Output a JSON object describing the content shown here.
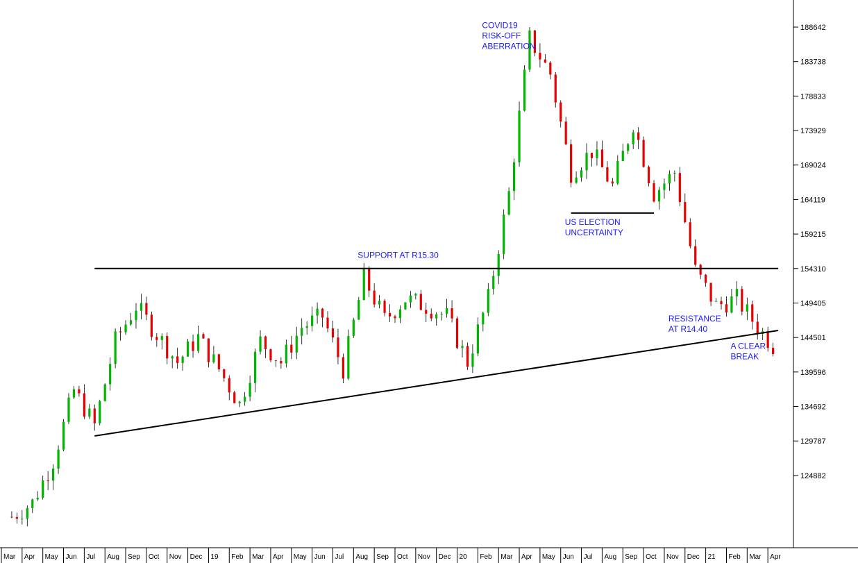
{
  "colors": {
    "up": "#00b400",
    "down": "#e60000",
    "wick": "#000000",
    "annotation": "#1a1aff",
    "axis": "#000000"
  },
  "chart_data": {
    "type": "candlestick",
    "title": "",
    "xlabel": "",
    "ylabel": "",
    "ylim": [
      115000,
      192000
    ],
    "y_ticks": [
      "188642",
      "183738",
      "178833",
      "173929",
      "169024",
      "164119",
      "159215",
      "154310",
      "149405",
      "144501",
      "139596",
      "134692",
      "129787",
      "124882"
    ],
    "x_ticks": [
      "Mar",
      "Apr",
      "May",
      "Jun",
      "Jul",
      "Aug",
      "Sep",
      "Oct",
      "Nov",
      "Dec",
      "19",
      "Feb",
      "Mar",
      "Apr",
      "May",
      "Jun",
      "Jul",
      "Aug",
      "Sep",
      "Oct",
      "Nov",
      "Dec",
      "20",
      "Feb",
      "Mar",
      "Apr",
      "May",
      "Jun",
      "Jul",
      "Aug",
      "Sep",
      "Oct",
      "Nov",
      "Dec",
      "21",
      "Feb",
      "Mar",
      "Apr"
    ],
    "x_start": "2018-03",
    "x_end": "2021-04",
    "approx_path": [
      {
        "t": "2018-03",
        "v": 119000
      },
      {
        "t": "2018-04",
        "v": 121000
      },
      {
        "t": "2018-05",
        "v": 127000
      },
      {
        "t": "2018-06",
        "v": 137000
      },
      {
        "t": "2018-07",
        "v": 132000
      },
      {
        "t": "2018-08",
        "v": 144000
      },
      {
        "t": "2018-09",
        "v": 149000
      },
      {
        "t": "2018-10",
        "v": 145000
      },
      {
        "t": "2018-11",
        "v": 141000
      },
      {
        "t": "2018-12",
        "v": 144500
      },
      {
        "t": "2019-01",
        "v": 140000
      },
      {
        "t": "2019-02",
        "v": 135000
      },
      {
        "t": "2019-03",
        "v": 144000
      },
      {
        "t": "2019-04",
        "v": 141000
      },
      {
        "t": "2019-05",
        "v": 146000
      },
      {
        "t": "2019-06",
        "v": 147500
      },
      {
        "t": "2019-07",
        "v": 140000
      },
      {
        "t": "2019-08",
        "v": 153000
      },
      {
        "t": "2019-09",
        "v": 147000
      },
      {
        "t": "2019-10",
        "v": 150000
      },
      {
        "t": "2019-11",
        "v": 149000
      },
      {
        "t": "2019-12",
        "v": 147500
      },
      {
        "t": "2020-01",
        "v": 141000
      },
      {
        "t": "2020-02",
        "v": 150000
      },
      {
        "t": "2020-03",
        "v": 165000
      },
      {
        "t": "2020-04",
        "v": 187000
      },
      {
        "t": "2020-05",
        "v": 182000
      },
      {
        "t": "2020-06",
        "v": 168000
      },
      {
        "t": "2020-07",
        "v": 171000
      },
      {
        "t": "2020-08",
        "v": 166000
      },
      {
        "t": "2020-09",
        "v": 175000
      },
      {
        "t": "2020-10",
        "v": 165000
      },
      {
        "t": "2020-11",
        "v": 168000
      },
      {
        "t": "2020-12",
        "v": 154000
      },
      {
        "t": "2021-01",
        "v": 149000
      },
      {
        "t": "2021-02",
        "v": 150000
      },
      {
        "t": "2021-03",
        "v": 146000
      },
      {
        "t": "2021-04",
        "v": 142500
      }
    ],
    "reference_lines": [
      {
        "name": "support",
        "type": "horizontal",
        "value": 154310,
        "from": "2018-07",
        "to": "2021-04"
      },
      {
        "name": "us-election",
        "type": "horizontal",
        "value": 162200,
        "from": "2020-06",
        "to": "2020-10"
      },
      {
        "name": "trendline",
        "type": "trend",
        "from": "2018-07",
        "from_value": 130500,
        "to": "2021-04",
        "to_value": 145500
      }
    ],
    "annotations": [
      {
        "lines": [
          "COVID19",
          "RISK-OFF",
          "ABERRATION"
        ],
        "anchor": "2020-02"
      },
      {
        "lines": [
          "SUPPORT AT R15.30"
        ],
        "anchor": "2019-08"
      },
      {
        "lines": [
          "US ELECTION",
          "UNCERTAINTY"
        ],
        "anchor": "2020-06"
      },
      {
        "lines": [
          "RESISTANCE",
          "AT R14.40"
        ],
        "anchor": "2020-11"
      },
      {
        "lines": [
          "A CLEAR",
          "BREAK"
        ],
        "anchor": "2021-02"
      }
    ]
  }
}
